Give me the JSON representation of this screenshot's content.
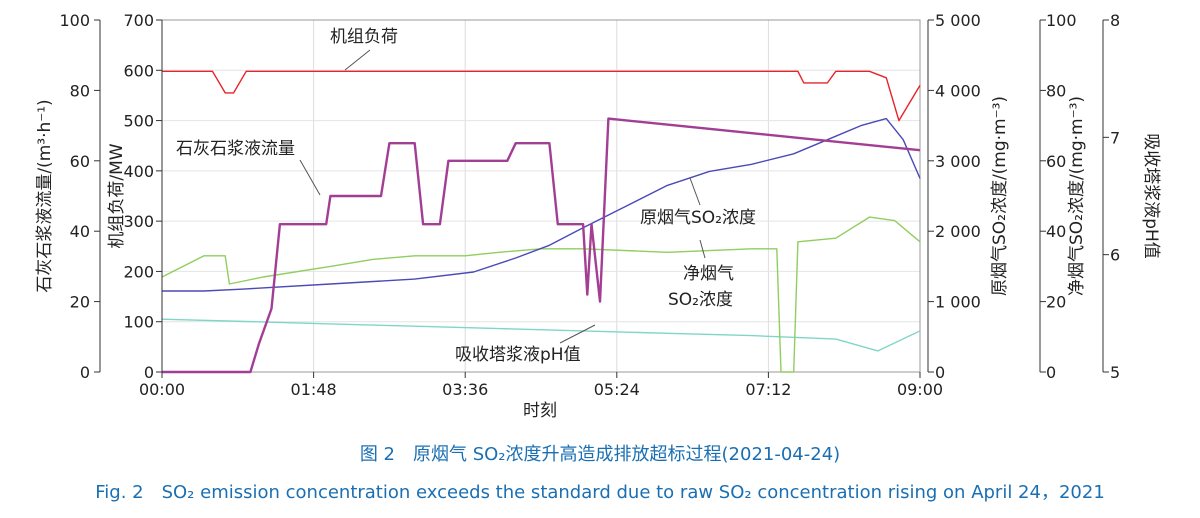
{
  "caption": {
    "cn": "图 2　原烟气 SO₂浓度升高造成排放超标过程(2021-04-24)",
    "en": "Fig. 2　SO₂ emission concentration exceeds the standard due to raw SO₂ concentration rising on April 24，2021"
  },
  "chart_data": {
    "type": "line",
    "xlabel": "时刻",
    "x_ticks": [
      "00:00",
      "01:48",
      "03:36",
      "05:24",
      "07:12",
      "09:00"
    ],
    "x_range_hours": [
      0,
      9
    ],
    "axes": [
      {
        "id": "limestone",
        "label": "石灰石浆液流量/(m³·h⁻¹)",
        "range": [
          0,
          100
        ],
        "ticks": [
          0,
          20,
          40,
          60,
          80,
          100
        ]
      },
      {
        "id": "load",
        "label": "机组负荷/MW",
        "range": [
          0,
          700
        ],
        "ticks": [
          0,
          100,
          200,
          300,
          400,
          500,
          600,
          700
        ]
      },
      {
        "id": "raw_so2",
        "label": "原烟气SO₂浓度/(mg·m⁻³)",
        "range": [
          0,
          5000
        ],
        "ticks": [
          "0",
          "1 000",
          "2 000",
          "3 000",
          "4 000",
          "5 000"
        ]
      },
      {
        "id": "clean_so2",
        "label": "净烟气SO₂浓度/(mg·m⁻³)",
        "range": [
          0,
          100
        ],
        "ticks": [
          0,
          20,
          40,
          60,
          80,
          100
        ]
      },
      {
        "id": "ph",
        "label": "吸收塔浆液pH值",
        "range": [
          5,
          8
        ],
        "ticks": [
          5,
          6,
          7,
          8
        ]
      }
    ],
    "series": [
      {
        "name": "机组负荷",
        "axis": "load",
        "color": "#e8232a",
        "x": [
          0,
          0.6,
          0.75,
          0.85,
          1.0,
          7.55,
          7.62,
          7.9,
          8.0,
          8.4,
          8.6,
          8.75,
          9.0
        ],
        "y": [
          598,
          598,
          555,
          555,
          598,
          598,
          575,
          575,
          598,
          598,
          585,
          500,
          570
        ]
      },
      {
        "name": "石灰石浆液流量",
        "axis": "limestone",
        "color": "#a23e94",
        "x": [
          0,
          1.05,
          1.15,
          1.3,
          1.4,
          1.45,
          1.55,
          1.95,
          2.0,
          2.6,
          2.7,
          3.0,
          3.1,
          3.3,
          3.4,
          4.1,
          4.2,
          4.6,
          4.7,
          5.0,
          5.05,
          5.1,
          5.2,
          5.3,
          9.0
        ],
        "y": [
          0,
          0,
          8,
          18,
          42,
          42,
          42,
          42,
          50,
          50,
          65,
          65,
          42,
          42,
          60,
          60,
          65,
          65,
          42,
          42,
          22,
          42,
          20,
          72,
          63
        ]
      },
      {
        "name": "原烟气SO₂浓度",
        "axis": "raw_so2",
        "color": "#4a4ab8",
        "x": [
          0,
          0.5,
          1.0,
          2.0,
          3.0,
          3.7,
          4.2,
          4.6,
          5.0,
          5.5,
          6.0,
          6.5,
          7.0,
          7.5,
          8.0,
          8.3,
          8.6,
          8.8,
          9.0
        ],
        "y": [
          1150,
          1150,
          1180,
          1250,
          1320,
          1420,
          1620,
          1800,
          2050,
          2350,
          2650,
          2850,
          2950,
          3100,
          3350,
          3500,
          3600,
          3300,
          2750
        ]
      },
      {
        "name": "净烟气SO₂浓度",
        "axis": "clean_so2",
        "color": "#8fce5f",
        "x": [
          0,
          0.5,
          0.75,
          0.8,
          1.2,
          2.0,
          2.5,
          3.0,
          3.6,
          4.0,
          4.5,
          5.0,
          6.0,
          7.0,
          7.3,
          7.35,
          7.5,
          7.55,
          8.0,
          8.4,
          8.7,
          9.0
        ],
        "y": [
          27,
          33,
          33,
          25,
          27,
          30,
          32,
          33,
          33,
          34,
          35,
          35,
          34,
          35,
          35,
          0,
          0,
          37,
          38,
          44,
          43,
          37
        ]
      },
      {
        "name": "吸收塔浆液pH值",
        "axis": "ph",
        "color": "#7fd6c8",
        "x": [
          0,
          1,
          2,
          3,
          4,
          5,
          6,
          7,
          8,
          8.5,
          9
        ],
        "y": [
          5.45,
          5.43,
          5.41,
          5.39,
          5.37,
          5.35,
          5.33,
          5.31,
          5.28,
          5.18,
          5.35
        ]
      }
    ],
    "annotations": [
      "机组负荷",
      "石灰石浆液流量",
      "原烟气SO₂浓度",
      "净烟气",
      "SO₂浓度",
      "吸收塔浆液pH值"
    ]
  }
}
